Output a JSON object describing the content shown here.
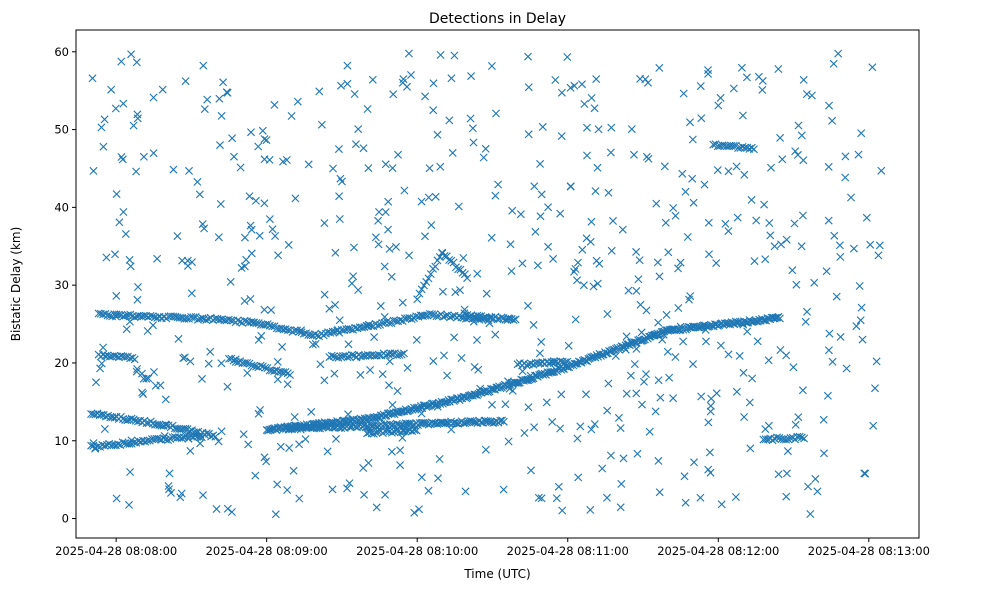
{
  "chart_data": {
    "type": "scatter",
    "title": "Detections in Delay",
    "xlabel": "Time (UTC)",
    "ylabel": "Bistatic Delay (km)",
    "x_units": "seconds after 2025-04-28 08:08:00",
    "xlim": [
      -16,
      320
    ],
    "ylim": [
      -2.5,
      62.8
    ],
    "x_ticks": [
      {
        "value": 0,
        "label": "2025-04-28 08:08:00"
      },
      {
        "value": 60,
        "label": "2025-04-28 08:09:00"
      },
      {
        "value": 120,
        "label": "2025-04-28 08:10:00"
      },
      {
        "value": 180,
        "label": "2025-04-28 08:11:00"
      },
      {
        "value": 240,
        "label": "2025-04-28 08:12:00"
      },
      {
        "value": 300,
        "label": "2025-04-28 08:13:00"
      }
    ],
    "y_ticks": [
      0,
      10,
      20,
      30,
      40,
      50,
      60
    ],
    "marker": "x",
    "marker_color": "#1f77b4",
    "clutter": {
      "x_range": [
        -10,
        305
      ],
      "y_range": [
        0.5,
        60
      ],
      "count": 640,
      "seed": 20250428
    },
    "tracks": [
      {
        "name": "track-1",
        "x": [
          -10,
          20,
          40
        ],
        "y": [
          13.5,
          12.0,
          10.5
        ],
        "step": 0.85
      },
      {
        "name": "track-2",
        "x": [
          -10,
          18,
          35
        ],
        "y": [
          9.2,
          10.2,
          10.6
        ],
        "step": 0.9
      },
      {
        "name": "track-3",
        "x": [
          -7,
          35,
          55,
          80,
          125,
          150
        ],
        "y": [
          26.2,
          25.7,
          25.2,
          23.5,
          26.2,
          25.6
        ],
        "step": 0.9
      },
      {
        "name": "track-4",
        "x": [
          -7,
          8
        ],
        "y": [
          21.0,
          20.6
        ],
        "step": 0.9
      },
      {
        "name": "track-5",
        "x": [
          60,
          100,
          140,
          180,
          220,
          265
        ],
        "y": [
          11.4,
          12.8,
          15.6,
          19.5,
          24.2,
          25.8
        ],
        "step": 0.55
      },
      {
        "name": "track-6",
        "x": [
          68,
          100,
          130,
          155
        ],
        "y": [
          11.6,
          11.9,
          12.3,
          12.5
        ],
        "step": 0.7
      },
      {
        "name": "track-7",
        "x": [
          85,
          115
        ],
        "y": [
          20.8,
          21.2
        ],
        "step": 0.9
      },
      {
        "name": "track-8",
        "x": [
          45,
          70
        ],
        "y": [
          20.5,
          18.5
        ],
        "step": 0.9
      },
      {
        "name": "track-9",
        "x": [
          120,
          130,
          140
        ],
        "y": [
          28.3,
          34.2,
          31.0
        ],
        "step": 0.9
      },
      {
        "name": "track-10",
        "x": [
          140,
          160
        ],
        "y": [
          26.0,
          25.6
        ],
        "step": 0.8
      },
      {
        "name": "track-11",
        "x": [
          238,
          255
        ],
        "y": [
          48.0,
          47.6
        ],
        "step": 0.9
      },
      {
        "name": "track-12",
        "x": [
          258,
          275
        ],
        "y": [
          10.2,
          10.4
        ],
        "step": 0.9
      },
      {
        "name": "track-13",
        "x": [
          160,
          180
        ],
        "y": [
          19.8,
          20.1
        ],
        "step": 0.9
      },
      {
        "name": "track-14",
        "x": [
          100,
          120
        ],
        "y": [
          11.0,
          11.3
        ],
        "step": 0.9
      }
    ]
  }
}
